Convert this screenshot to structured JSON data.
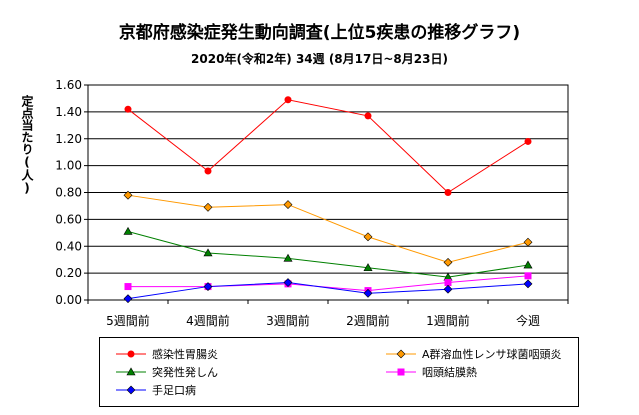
{
  "chart_data": {
    "type": "line",
    "title": "京都府感染症発生動向調査(上位5疾患の推移グラフ)",
    "subtitle": "2020年(令和2年) 34週 (8月17日~8月23日)",
    "ylabel": "定点当たり(人)",
    "xlabel": "",
    "categories": [
      "5週間前",
      "4週間前",
      "3週間前",
      "2週間前",
      "1週間前",
      "今週"
    ],
    "ylim": [
      0,
      1.6
    ],
    "yticks": [
      "0.00",
      "0.20",
      "0.40",
      "0.60",
      "0.80",
      "1.00",
      "1.20",
      "1.40",
      "1.60"
    ],
    "grid": true,
    "legend_position": "bottom",
    "series": [
      {
        "name": "感染性胃腸炎",
        "color": "#ff0000",
        "marker": "circle",
        "values": [
          1.42,
          0.96,
          1.49,
          1.37,
          0.8,
          1.18
        ]
      },
      {
        "name": "A群溶血性レンサ球菌咽頭炎",
        "color": "#ff9900",
        "marker": "diamond",
        "values": [
          0.78,
          0.69,
          0.71,
          0.47,
          0.28,
          0.43
        ]
      },
      {
        "name": "突発性発しん",
        "color": "#008000",
        "marker": "triangle",
        "values": [
          0.51,
          0.35,
          0.31,
          0.24,
          0.17,
          0.26
        ]
      },
      {
        "name": "咽頭結膜熱",
        "color": "#ff00ff",
        "marker": "square",
        "values": [
          0.1,
          0.1,
          0.12,
          0.07,
          0.13,
          0.18
        ]
      },
      {
        "name": "手足口病",
        "color": "#0000ff",
        "marker": "diamond",
        "values": [
          0.01,
          0.1,
          0.13,
          0.05,
          0.08,
          0.12
        ]
      }
    ]
  }
}
